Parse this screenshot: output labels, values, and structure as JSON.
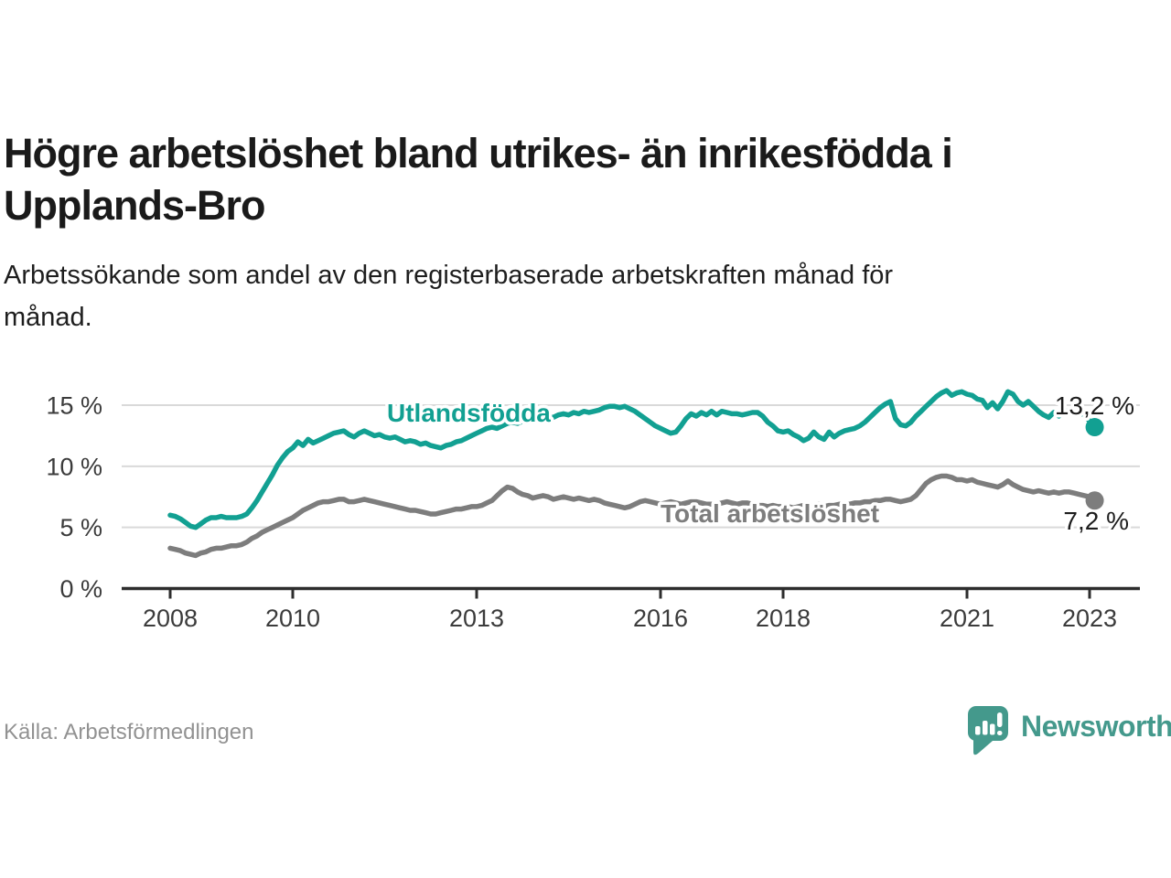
{
  "page": {
    "title": "Högre arbetslöshet bland utrikes- än inrikesfödda i\nUpplands-Bro",
    "subtitle": "Arbetssökande som andel av den registerbaserade arbetskraften månad för\nmånad.",
    "source": "Källa: Arbetsförmedlingen",
    "brand_name": "Newsworthy",
    "logo_icon": "bar-chart-speech-bubble-icon"
  },
  "colors": {
    "accent_teal": "#12a092",
    "series_gray": "#7d7d7d",
    "logo_teal": "#44998c",
    "grid": "#d9d9d9",
    "axis": "#2d2d2d",
    "axis_label": "#3b3b3b",
    "value_label": "#1d1d1d",
    "title_text": "#1a1a1a",
    "source_text": "#929292"
  },
  "chart_data": {
    "type": "line",
    "title": "Högre arbetslöshet bland utrikes- än inrikesfödda i Upplands-Bro",
    "subtitle": "Arbetssökande som andel av den registerbaserade arbetskraften månad för månad.",
    "unit": "%",
    "x_start_year": 2008,
    "x_months_per_point": 1,
    "x_end": "2023-02",
    "ylim": [
      0,
      16.8
    ],
    "grid": true,
    "legend_position": "inline-labels",
    "y_ticks": [
      {
        "value": 0,
        "label": "0 %"
      },
      {
        "value": 5,
        "label": "5 %"
      },
      {
        "value": 10,
        "label": "10 %"
      },
      {
        "value": 15,
        "label": "15 %"
      }
    ],
    "x_ticks": [
      {
        "year": 2008,
        "label": "2008"
      },
      {
        "year": 2010,
        "label": "2010"
      },
      {
        "year": 2013,
        "label": "2013"
      },
      {
        "year": 2016,
        "label": "2016"
      },
      {
        "year": 2018,
        "label": "2018"
      },
      {
        "year": 2021,
        "label": "2021"
      },
      {
        "year": 2023,
        "label": "2023"
      }
    ],
    "series": [
      {
        "name": "Utlandsfödda",
        "color": "#12a092",
        "end_label": "13,2 %",
        "last_value": 13.2,
        "values": [
          6.0,
          5.9,
          5.7,
          5.4,
          5.1,
          5.0,
          5.3,
          5.6,
          5.8,
          5.8,
          5.9,
          5.8,
          5.8,
          5.8,
          5.9,
          6.1,
          6.6,
          7.2,
          7.9,
          8.6,
          9.3,
          10.1,
          10.7,
          11.2,
          11.5,
          12.0,
          11.7,
          12.2,
          11.9,
          12.1,
          12.3,
          12.5,
          12.7,
          12.8,
          12.9,
          12.6,
          12.4,
          12.7,
          12.9,
          12.7,
          12.5,
          12.6,
          12.4,
          12.3,
          12.4,
          12.2,
          12.0,
          12.1,
          12.0,
          11.8,
          11.9,
          11.7,
          11.6,
          11.5,
          11.7,
          11.8,
          12.0,
          12.1,
          12.3,
          12.5,
          12.7,
          12.9,
          13.1,
          13.2,
          13.1,
          13.3,
          13.5,
          13.6,
          13.5,
          13.7,
          13.6,
          13.8,
          13.9,
          14.0,
          14.1,
          14.0,
          14.2,
          14.3,
          14.2,
          14.4,
          14.3,
          14.5,
          14.4,
          14.5,
          14.6,
          14.8,
          14.9,
          14.9,
          14.8,
          14.9,
          14.7,
          14.5,
          14.2,
          13.9,
          13.6,
          13.3,
          13.1,
          12.9,
          12.7,
          12.8,
          13.3,
          13.9,
          14.3,
          14.1,
          14.4,
          14.2,
          14.5,
          14.2,
          14.5,
          14.4,
          14.3,
          14.3,
          14.2,
          14.3,
          14.4,
          14.4,
          14.1,
          13.6,
          13.3,
          12.9,
          12.8,
          12.9,
          12.6,
          12.4,
          12.1,
          12.3,
          12.8,
          12.4,
          12.2,
          12.8,
          12.4,
          12.7,
          12.9,
          13.0,
          13.1,
          13.3,
          13.6,
          14.0,
          14.4,
          14.8,
          15.1,
          15.3,
          13.9,
          13.4,
          13.3,
          13.6,
          14.1,
          14.5,
          14.9,
          15.3,
          15.7,
          16.0,
          16.2,
          15.8,
          16.0,
          16.1,
          15.9,
          15.8,
          15.5,
          15.4,
          14.8,
          15.2,
          14.7,
          15.3,
          16.1,
          15.9,
          15.3,
          15.0,
          15.3,
          14.9,
          14.5,
          14.2,
          14.0,
          14.4,
          14.1,
          14.6,
          14.4,
          14.3,
          14.4,
          14.2,
          13.7,
          13.2
        ]
      },
      {
        "name": "Total arbetslöshet",
        "color": "#7d7d7d",
        "end_label": "7,2 %",
        "last_value": 7.2,
        "values": [
          3.3,
          3.2,
          3.1,
          2.9,
          2.8,
          2.7,
          2.9,
          3.0,
          3.2,
          3.3,
          3.3,
          3.4,
          3.5,
          3.5,
          3.6,
          3.8,
          4.1,
          4.3,
          4.6,
          4.8,
          5.0,
          5.2,
          5.4,
          5.6,
          5.8,
          6.1,
          6.4,
          6.6,
          6.8,
          7.0,
          7.1,
          7.1,
          7.2,
          7.3,
          7.3,
          7.1,
          7.1,
          7.2,
          7.3,
          7.2,
          7.1,
          7.0,
          6.9,
          6.8,
          6.7,
          6.6,
          6.5,
          6.4,
          6.4,
          6.3,
          6.2,
          6.1,
          6.1,
          6.2,
          6.3,
          6.4,
          6.5,
          6.5,
          6.6,
          6.7,
          6.7,
          6.8,
          7.0,
          7.2,
          7.6,
          8.0,
          8.3,
          8.2,
          7.9,
          7.7,
          7.6,
          7.4,
          7.5,
          7.6,
          7.5,
          7.3,
          7.4,
          7.5,
          7.4,
          7.3,
          7.4,
          7.3,
          7.2,
          7.3,
          7.2,
          7.0,
          6.9,
          6.8,
          6.7,
          6.6,
          6.7,
          6.9,
          7.1,
          7.2,
          7.1,
          7.0,
          6.9,
          7.0,
          7.1,
          7.0,
          6.9,
          7.0,
          7.1,
          7.1,
          7.0,
          6.9,
          6.9,
          6.9,
          7.0,
          7.1,
          7.0,
          6.9,
          7.0,
          7.0,
          6.9,
          6.8,
          6.8,
          6.7,
          6.8,
          6.7,
          6.7,
          6.7,
          6.6,
          6.7,
          6.8,
          6.7,
          6.8,
          6.9,
          6.7,
          6.8,
          6.8,
          6.9,
          6.9,
          6.9,
          7.0,
          7.0,
          7.1,
          7.1,
          7.2,
          7.2,
          7.3,
          7.3,
          7.2,
          7.1,
          7.2,
          7.3,
          7.6,
          8.1,
          8.6,
          8.9,
          9.1,
          9.2,
          9.2,
          9.1,
          8.9,
          8.9,
          8.8,
          8.9,
          8.7,
          8.6,
          8.5,
          8.4,
          8.3,
          8.5,
          8.8,
          8.5,
          8.3,
          8.1,
          8.0,
          7.9,
          8.0,
          7.9,
          7.8,
          7.9,
          7.8,
          7.9,
          7.9,
          7.8,
          7.7,
          7.6,
          7.5,
          7.2
        ]
      }
    ]
  }
}
